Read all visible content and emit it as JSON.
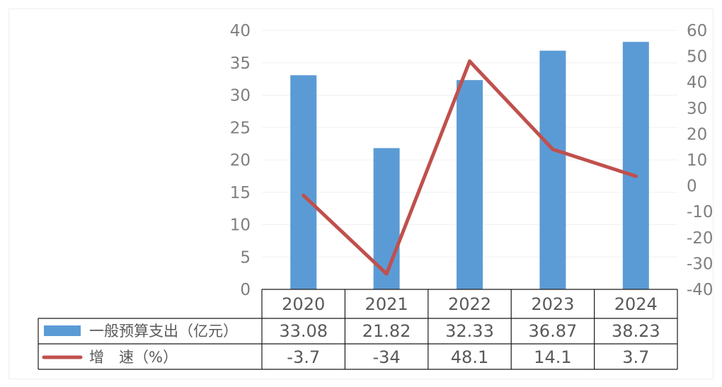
{
  "chart_data": {
    "type": "bar",
    "categories": [
      "2020",
      "2021",
      "2022",
      "2023",
      "2024"
    ],
    "series": [
      {
        "name": "一般预算支出（亿元）",
        "type": "bar",
        "axis": "left",
        "color": "#5b9bd5",
        "values": [
          33.08,
          21.82,
          32.33,
          36.87,
          38.23
        ],
        "labels": [
          "33.08",
          "21.82",
          "32.33",
          "36.87",
          "38.23"
        ]
      },
      {
        "name": "增　速（%）",
        "type": "line",
        "axis": "right",
        "color": "#c0504d",
        "values": [
          -3.7,
          -34,
          48.1,
          14.1,
          3.7
        ],
        "labels": [
          "-3.7",
          "-34",
          "48.1",
          "14.1",
          "3.7"
        ]
      }
    ],
    "y_left": {
      "ticks": [
        "0",
        "5",
        "10",
        "15",
        "20",
        "25",
        "30",
        "35",
        "40"
      ],
      "range": [
        0,
        40
      ]
    },
    "y_right": {
      "ticks": [
        "-40",
        "-30",
        "-20",
        "-10",
        "0",
        "10",
        "20",
        "30",
        "40",
        "50",
        "60"
      ],
      "range": [
        -40,
        60
      ]
    },
    "grid": true,
    "legend": "data-table"
  }
}
